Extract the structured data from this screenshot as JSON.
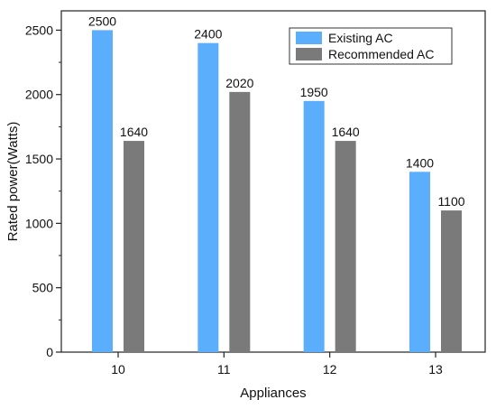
{
  "chart_data": {
    "type": "bar",
    "title": "",
    "xlabel": "Appliances",
    "ylabel": "Rated power(Watts)",
    "categories": [
      "10",
      "11",
      "12",
      "13"
    ],
    "ylim": [
      0,
      2650
    ],
    "yticks": [
      0,
      500,
      1000,
      1500,
      2000,
      2500
    ],
    "grid": false,
    "legend_position": "top-right",
    "series": [
      {
        "name": "Existing AC",
        "color": "#5aaefc",
        "values": [
          2500,
          2400,
          1950,
          1400
        ],
        "labels": [
          "2500",
          "2400",
          "1950",
          "1400"
        ]
      },
      {
        "name": "Recommended AC",
        "color": "#7a7a7a",
        "values": [
          1640,
          2020,
          1640,
          1100
        ],
        "labels": [
          "1640",
          "2020",
          "1640",
          "1100"
        ]
      }
    ]
  }
}
